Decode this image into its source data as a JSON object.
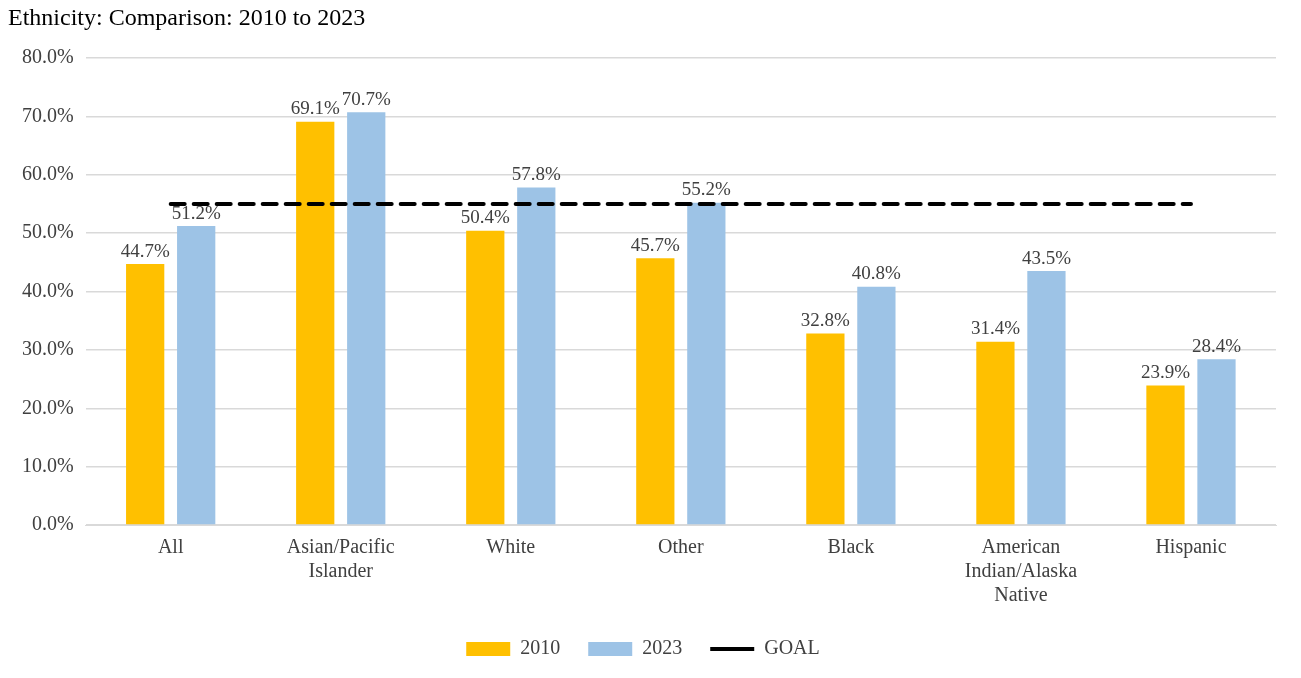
{
  "chart_data": {
    "type": "bar",
    "title": "Ethnicity: Comparison: 2010 to 2023",
    "categories": [
      "All",
      "Asian/Pacific Islander",
      "White",
      "Other",
      "Black",
      "American Indian/Alaska Native",
      "Hispanic"
    ],
    "series": [
      {
        "name": "2010",
        "color": "#ffc000",
        "values": [
          44.7,
          69.1,
          50.4,
          45.7,
          32.8,
          31.4,
          23.9
        ],
        "value_labels": [
          "44.7%",
          "69.1%",
          "50.4%",
          "45.7%",
          "32.8%",
          "31.4%",
          "23.9%"
        ]
      },
      {
        "name": "2023",
        "color": "#9dc3e6",
        "values": [
          51.2,
          70.7,
          57.8,
          55.2,
          40.8,
          43.5,
          28.4
        ],
        "value_labels": [
          "51.2%",
          "70.7%",
          "57.8%",
          "55.2%",
          "40.8%",
          "43.5%",
          "28.4%"
        ]
      },
      {
        "name": "GOAL",
        "type": "line",
        "color": "#000000",
        "line_style": "dashed",
        "values": [
          55,
          55,
          55,
          55,
          55,
          55,
          55
        ]
      }
    ],
    "ylim": [
      0,
      80
    ],
    "yticks": [
      {
        "value": 0,
        "label": "0.0%"
      },
      {
        "value": 10,
        "label": "10.0%"
      },
      {
        "value": 20,
        "label": "20.0%"
      },
      {
        "value": 30,
        "label": "30.0%"
      },
      {
        "value": 40,
        "label": "40.0%"
      },
      {
        "value": 50,
        "label": "50.0%"
      },
      {
        "value": 60,
        "label": "60.0%"
      },
      {
        "value": 70,
        "label": "70.0%"
      },
      {
        "value": 80,
        "label": "80.0%"
      }
    ],
    "grid": "y",
    "legend": "bottom"
  }
}
